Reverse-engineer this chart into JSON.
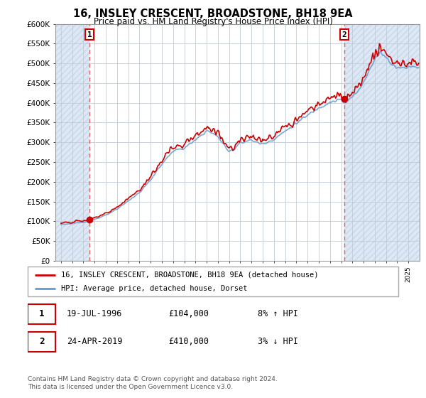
{
  "title": "16, INSLEY CRESCENT, BROADSTONE, BH18 9EA",
  "subtitle": "Price paid vs. HM Land Registry's House Price Index (HPI)",
  "sale1_date": "19-JUL-1996",
  "sale1_price": 104000,
  "sale1_year": 1996.55,
  "sale1_hpi_pct": "8% ↑ HPI",
  "sale2_date": "24-APR-2019",
  "sale2_price": 410000,
  "sale2_year": 2019.3,
  "sale2_hpi_pct": "3% ↓ HPI",
  "legend_line1": "16, INSLEY CRESCENT, BROADSTONE, BH18 9EA (detached house)",
  "legend_line2": "HPI: Average price, detached house, Dorset",
  "footer": "Contains HM Land Registry data © Crown copyright and database right 2024.\nThis data is licensed under the Open Government Licence v3.0.",
  "sale_line_color": "#cc0000",
  "hpi_line_color": "#6699cc",
  "marker_color": "#cc0000",
  "dashed_line_color": "#dd6666",
  "hatch_color": "#dde8f0",
  "ylim": [
    0,
    600000
  ],
  "yticks": [
    0,
    50000,
    100000,
    150000,
    200000,
    250000,
    300000,
    350000,
    400000,
    450000,
    500000,
    550000,
    600000
  ],
  "ytick_labels": [
    "£0",
    "£50K",
    "£100K",
    "£150K",
    "£200K",
    "£250K",
    "£300K",
    "£350K",
    "£400K",
    "£450K",
    "£500K",
    "£550K",
    "£600K"
  ],
  "xmin": 1993.5,
  "xmax": 2026.0
}
